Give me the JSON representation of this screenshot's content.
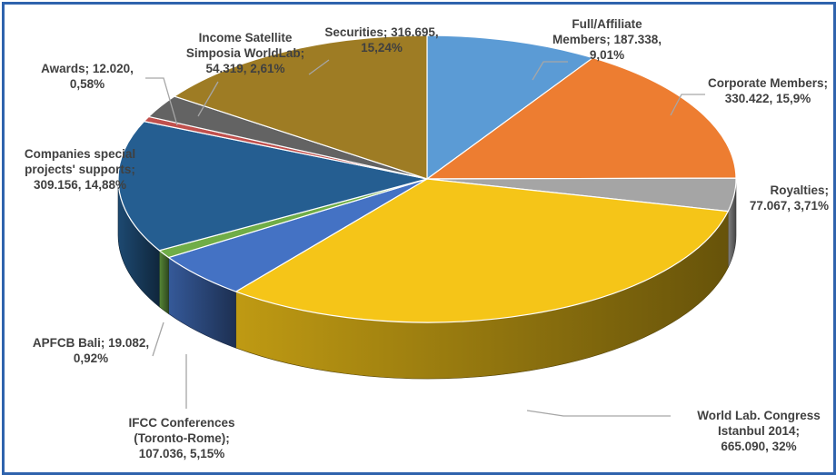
{
  "chart_data": {
    "type": "pie",
    "style": "3d",
    "title": "",
    "slices": [
      {
        "name": "Full/Affiliate Members",
        "value": 187338,
        "percent": 9.01,
        "color": "#5b9bd5",
        "label_lines": [
          "Full/Affiliate",
          "Members; 187.338,",
          "9,01%"
        ]
      },
      {
        "name": "Corporate Members",
        "value": 330422,
        "percent": 15.9,
        "color": "#ed7d31",
        "label_lines": [
          "Corporate Members;",
          "330.422, 15,9%"
        ]
      },
      {
        "name": "Royalties",
        "value": 77067,
        "percent": 3.71,
        "color": "#a5a5a5",
        "label_lines": [
          "Royalties;",
          "77.067, 3,71%"
        ]
      },
      {
        "name": "World Lab. Congress Istanbul 2014",
        "value": 665090,
        "percent": 32,
        "color": "#f5c518",
        "label_lines": [
          "World Lab. Congress",
          "Istanbul 2014;",
          "665.090, 32%"
        ]
      },
      {
        "name": "IFCC Conferences (Toronto-Rome)",
        "value": 107036,
        "percent": 5.15,
        "color": "#4472c4",
        "label_lines": [
          "IFCC Conferences",
          "(Toronto-Rome);",
          "107.036, 5,15%"
        ]
      },
      {
        "name": "APFCB Bali",
        "value": 19082,
        "percent": 0.92,
        "color": "#70ad47",
        "label_lines": [
          "APFCB Bali; 19.082,",
          "0,92%"
        ]
      },
      {
        "name": "Companies special projects' supports",
        "value": 309156,
        "percent": 14.88,
        "color": "#255e91",
        "label_lines": [
          "Companies special",
          "projects' supports;",
          "309.156, 14,88%"
        ]
      },
      {
        "name": "Awards",
        "value": 12020,
        "percent": 0.58,
        "color": "#c0504d",
        "label_lines": [
          "Awards; 12.020,",
          "0,58%"
        ]
      },
      {
        "name": "Income Satellite Simposia WorldLab",
        "value": 54319,
        "percent": 2.61,
        "color": "#636363",
        "label_lines": [
          "Income  Satellite",
          "Simposia  WorldLab;",
          "54.319, 2,61%"
        ]
      },
      {
        "name": "Securities",
        "value": 316695,
        "percent": 15.24,
        "color": "#9e7c24",
        "label_lines": [
          "Securities; 316.695,",
          "15,24%"
        ]
      }
    ]
  }
}
